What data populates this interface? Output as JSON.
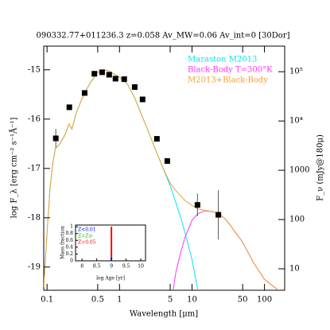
{
  "chart_data": [
    {
      "type": "line",
      "title": "090332.77+011236.3 z=0.058 Av_MW=0.06 Av_int=0 [30Dor]",
      "x_label": "Wavelength [μm]",
      "y_label": "log F_λ [erg cm⁻² s⁻¹Å⁻¹]",
      "y2_label": "F_ν (mJy@180μ)",
      "xscale": "log",
      "y2scale": "log",
      "xlim": [
        0.09,
        190
      ],
      "xticks": [
        0.1,
        0.5,
        1,
        5,
        10,
        50,
        100
      ],
      "ylim": [
        -19.47,
        -14.52
      ],
      "yticks": [
        -15,
        -16,
        -17,
        -18,
        -19
      ],
      "y2lim": [
        3.67,
        331000
      ],
      "y2ticks": [
        {
          "value": 100000,
          "label": "10⁵"
        },
        {
          "value": 10000,
          "label": "10⁴"
        },
        1000,
        100,
        10
      ],
      "legend": "upper right",
      "series": [
        {
          "name": "Maraston M2013",
          "color": "#00e5ee",
          "x": [
            0.09,
            0.1,
            0.11,
            0.12,
            0.13,
            0.15,
            0.18,
            0.2,
            0.22,
            0.25,
            0.3,
            0.35,
            0.4,
            0.5,
            0.6,
            0.7,
            0.8,
            1,
            1.3,
            1.6,
            2,
            2.5,
            3,
            4,
            5,
            6,
            7,
            8,
            10,
            12
          ],
          "values": [
            -19.4,
            -18.3,
            -17.4,
            -16.9,
            -16.6,
            -16.5,
            -16.3,
            -16.1,
            -16.2,
            -15.9,
            -15.6,
            -15.4,
            -15.25,
            -15.05,
            -15.0,
            -15.02,
            -15.07,
            -15.15,
            -15.3,
            -15.55,
            -15.9,
            -16.25,
            -16.55,
            -17.0,
            -17.35,
            -17.7,
            -18.0,
            -18.3,
            -18.85,
            -19.47
          ]
        },
        {
          "name": "Black-Body T=300°K",
          "color": "#ff33ff",
          "x": [
            5.5,
            6,
            7,
            8,
            10,
            12,
            15,
            20,
            25,
            30,
            40,
            50,
            70,
            100,
            150
          ],
          "values": [
            -19.47,
            -19.1,
            -18.7,
            -18.4,
            -18.05,
            -17.92,
            -17.86,
            -17.88,
            -17.95,
            -18.05,
            -18.3,
            -18.5,
            -18.9,
            -19.25,
            -19.45
          ]
        },
        {
          "name": "M2013+Black-Body",
          "color": "#f0a030",
          "x": [
            0.09,
            0.1,
            0.11,
            0.12,
            0.13,
            0.15,
            0.18,
            0.2,
            0.22,
            0.25,
            0.3,
            0.35,
            0.4,
            0.5,
            0.6,
            0.7,
            0.8,
            1,
            1.3,
            1.6,
            2,
            2.5,
            3,
            4,
            5,
            6,
            8,
            10,
            12,
            15,
            20,
            25,
            30,
            40,
            50,
            70,
            100,
            150
          ],
          "values": [
            -19.4,
            -18.3,
            -17.4,
            -16.9,
            -16.6,
            -16.5,
            -16.3,
            -16.1,
            -16.2,
            -15.9,
            -15.6,
            -15.4,
            -15.25,
            -15.05,
            -15.0,
            -15.02,
            -15.07,
            -15.15,
            -15.3,
            -15.55,
            -15.9,
            -16.25,
            -16.55,
            -17.0,
            -17.3,
            -17.45,
            -17.65,
            -17.75,
            -17.82,
            -17.85,
            -17.88,
            -17.95,
            -18.05,
            -18.3,
            -18.5,
            -18.9,
            -19.25,
            -19.45
          ]
        }
      ],
      "points": {
        "x": [
          0.132,
          0.203,
          0.33,
          0.45,
          0.575,
          0.72,
          0.88,
          1.16,
          1.62,
          2.08,
          3.28,
          4.56,
          11.9,
          23.1
        ],
        "values": [
          -16.39,
          -15.76,
          -15.47,
          -15.08,
          -15.05,
          -15.1,
          -15.18,
          -15.19,
          -15.35,
          -15.6,
          -16.4,
          -16.85,
          -17.74,
          -17.94
        ],
        "errors": [
          0.19,
          null,
          null,
          null,
          null,
          null,
          null,
          null,
          null,
          null,
          null,
          null,
          0.23,
          0.5
        ]
      }
    },
    {
      "type": "bar",
      "x_label": "log Age [yr]",
      "y_label": "Mass fraction",
      "xlim": [
        7.78,
        10.16
      ],
      "xticks": [
        8,
        8.5,
        9,
        9.5,
        10
      ],
      "ylim": [
        0,
        1.05
      ],
      "yticks": [
        0,
        0.2,
        0.4,
        0.6,
        0.8,
        1
      ],
      "stacked": true,
      "series": [
        {
          "name": "Z<0.01",
          "color": "#0000ff",
          "x": [
            9
          ],
          "values": [
            0.1
          ]
        },
        {
          "name": "Z=Z⊙",
          "color": "#00c000",
          "x": [
            9
          ],
          "values": [
            0
          ]
        },
        {
          "name": "Z=0.05",
          "color": "#ff0000",
          "x": [
            9
          ],
          "values": [
            0.9
          ]
        }
      ]
    }
  ]
}
